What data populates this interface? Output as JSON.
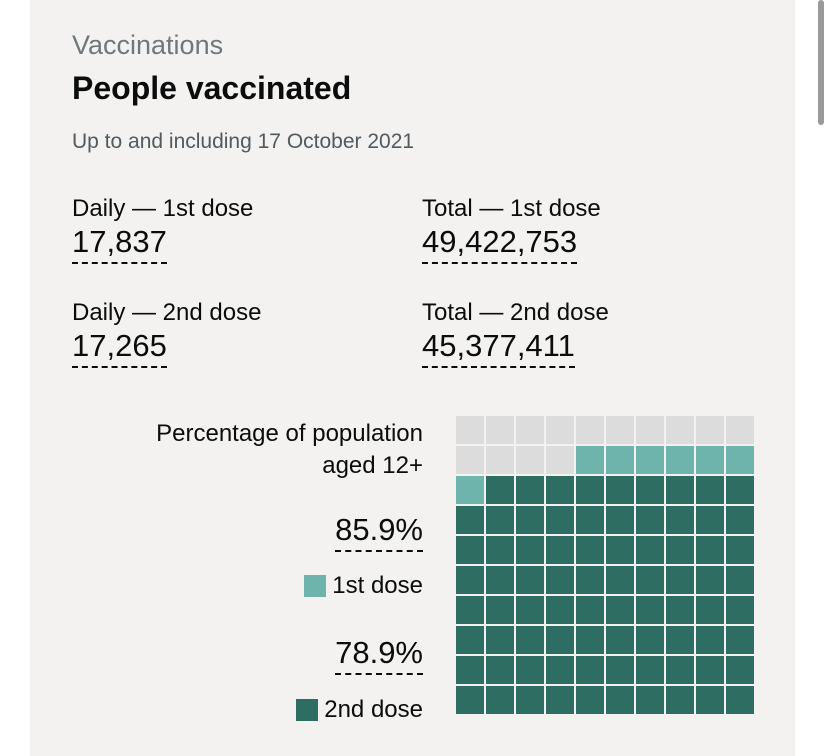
{
  "header": {
    "caption": "Vaccinations",
    "title": "People vaccinated",
    "updated": "Up to and including 17 October 2021"
  },
  "metrics": [
    {
      "label": "Daily — 1st dose",
      "value": "17,837"
    },
    {
      "label": "Total — 1st dose",
      "value": "49,422,753"
    },
    {
      "label": "Daily — 2nd dose",
      "value": "17,265"
    },
    {
      "label": "Total — 2nd dose",
      "value": "45,377,411"
    }
  ],
  "waffle": {
    "label": "Percentage of population aged 12+",
    "first_dose_pct": "85.9%",
    "first_dose_label": "1st dose",
    "second_dose_pct": "78.9%",
    "second_dose_label": "2nd dose",
    "first_dose_value": 85.9,
    "second_dose_value": 78.9
  },
  "colors": {
    "first_dose": "#6fb3ad",
    "second_dose": "#2e6d62",
    "empty": "#dcdcdc"
  }
}
